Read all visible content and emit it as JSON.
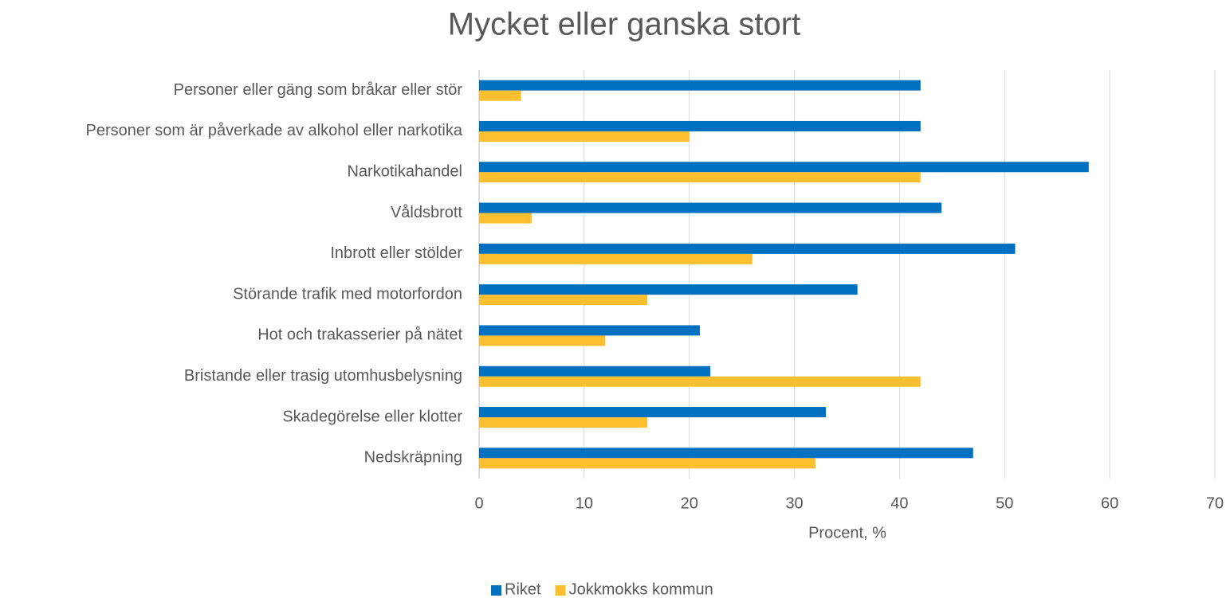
{
  "chart_data": {
    "type": "bar",
    "horizontal": true,
    "title": "Mycket eller ganska stort",
    "x_label": "Procent, %",
    "categories": [
      "Personer eller gäng som bråkar eller stör",
      "Personer som är påverkade av alkohol eller narkotika",
      "Narkotikahandel",
      "Våldsbrott",
      "Inbrott eller stölder",
      "Störande trafik med motorfordon",
      "Hot och trakasserier på nätet",
      "Bristande eller trasig utomhusbelysning",
      "Skadegörelse eller klotter",
      "Nedskräpning"
    ],
    "series": [
      {
        "name": "Riket",
        "color": "#0070c0",
        "values": [
          42,
          42,
          58,
          44,
          51,
          36,
          21,
          22,
          33,
          47
        ]
      },
      {
        "name": "Jokkmokks kommun",
        "color": "#fbbf2f",
        "values": [
          4,
          20,
          42,
          5,
          26,
          16,
          12,
          42,
          16,
          32
        ]
      }
    ],
    "xlim": [
      0,
      70
    ],
    "xticks": [
      0,
      10,
      20,
      30,
      40,
      50,
      60,
      70
    ],
    "grid": true,
    "legend": "bottom"
  }
}
